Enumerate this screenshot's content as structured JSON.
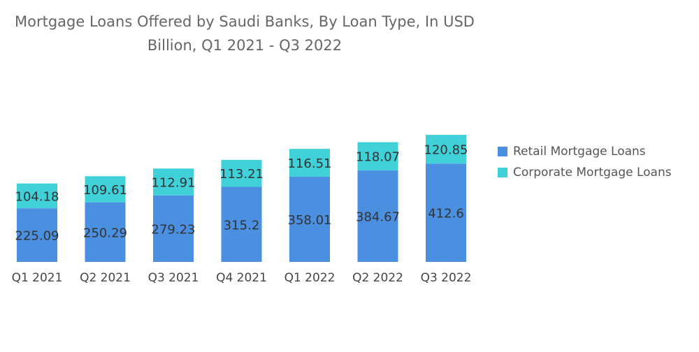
{
  "chart_data": {
    "type": "bar",
    "stacked": true,
    "title_line1": "Mortgage Loans Offered by Saudi Banks, By Loan Type, In USD",
    "title_line2": "Billion, Q1 2021 - Q3 2022",
    "categories": [
      "Q1 2021",
      "Q2 2021",
      "Q3 2021",
      "Q4 2021",
      "Q1 2022",
      "Q2 2022",
      "Q3 2022"
    ],
    "series": [
      {
        "name": "Retail Mortgage Loans",
        "color": "#4a8fe0",
        "values": [
          225.09,
          250.29,
          279.23,
          315.2,
          358.01,
          384.67,
          412.6
        ]
      },
      {
        "name": "Corporate Mortgage Loans",
        "color": "#3fd0d8",
        "values": [
          104.18,
          109.61,
          112.91,
          113.21,
          116.51,
          118.07,
          120.85
        ]
      }
    ],
    "legend_position": "right",
    "grid": false,
    "axis_y_visible": false
  }
}
